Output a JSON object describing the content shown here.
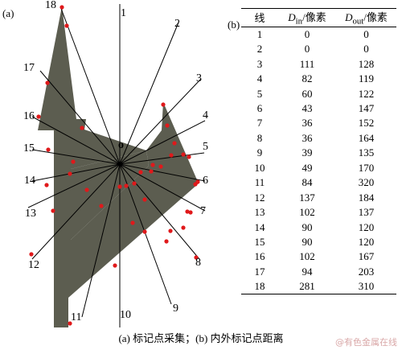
{
  "panel_a": {
    "tag": "(a)",
    "center_label": "o",
    "line_numbers": [
      "1",
      "2",
      "3",
      "4",
      "5",
      "6",
      "7",
      "8",
      "9",
      "10",
      "11",
      "12",
      "13",
      "14",
      "15",
      "16",
      "17",
      "18"
    ]
  },
  "panel_b": {
    "tag": "(b)",
    "headers": {
      "line": "线",
      "d_in": "Din/像素",
      "d_out": "Dout/像素"
    },
    "rows": [
      [
        "1",
        "0",
        "0"
      ],
      [
        "2",
        "0",
        "0"
      ],
      [
        "3",
        "111",
        "128"
      ],
      [
        "4",
        "82",
        "119"
      ],
      [
        "5",
        "60",
        "122"
      ],
      [
        "6",
        "43",
        "147"
      ],
      [
        "7",
        "36",
        "152"
      ],
      [
        "8",
        "36",
        "164"
      ],
      [
        "9",
        "39",
        "135"
      ],
      [
        "10",
        "49",
        "170"
      ],
      [
        "11",
        "84",
        "320"
      ],
      [
        "12",
        "137",
        "184"
      ],
      [
        "13",
        "102",
        "137"
      ],
      [
        "14",
        "90",
        "120"
      ],
      [
        "15",
        "90",
        "120"
      ],
      [
        "16",
        "102",
        "167"
      ],
      [
        "17",
        "94",
        "203"
      ],
      [
        "18",
        "281",
        "310"
      ]
    ]
  },
  "caption": "(a) 标记点采集；(b) 内外标记点距离",
  "watermark": "@有色金属在线",
  "colors": {
    "shape_fill": "#5c5d50",
    "marker": "#e0191b",
    "line": "#000000"
  }
}
